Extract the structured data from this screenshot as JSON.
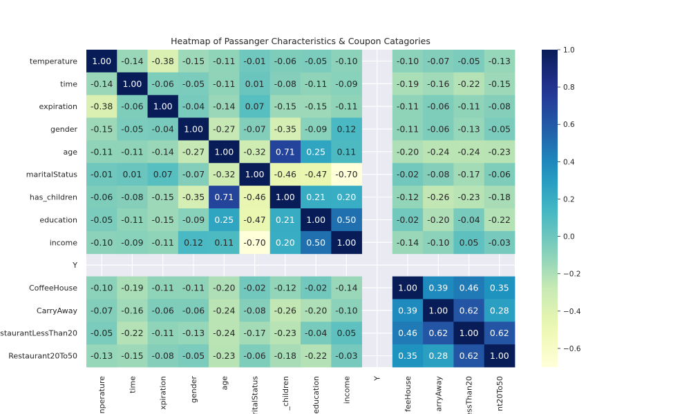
{
  "chart_data": {
    "type": "heatmap",
    "title": "Heatmap of Passanger Characteristics & Coupon Catagories",
    "row_labels": [
      "temperature",
      "time",
      "expiration",
      "gender",
      "age",
      "maritalStatus",
      "has_children",
      "education",
      "income",
      "Y",
      "CoffeeHouse",
      "CarryAway",
      "staurantLessThan20",
      "Restaurant20To50"
    ],
    "col_labels": [
      "nperature",
      "time",
      "xpiration",
      "gender",
      "age",
      "iritalStatus",
      "_children",
      "education",
      "income",
      "Y",
      "feeHouse",
      "arryAway",
      "essThan20",
      "nt20To50"
    ],
    "values": [
      [
        1.0,
        -0.14,
        -0.38,
        -0.15,
        -0.11,
        -0.01,
        -0.06,
        -0.05,
        -0.1,
        null,
        -0.1,
        -0.07,
        -0.05,
        -0.13
      ],
      [
        -0.14,
        1.0,
        -0.06,
        -0.05,
        -0.11,
        0.01,
        -0.08,
        -0.11,
        -0.09,
        null,
        -0.19,
        -0.16,
        -0.22,
        -0.15
      ],
      [
        -0.38,
        -0.06,
        1.0,
        -0.04,
        -0.14,
        0.07,
        -0.15,
        -0.15,
        -0.11,
        null,
        -0.11,
        -0.06,
        -0.11,
        -0.08
      ],
      [
        -0.15,
        -0.05,
        -0.04,
        1.0,
        -0.27,
        -0.07,
        -0.35,
        -0.09,
        0.12,
        null,
        -0.11,
        -0.06,
        -0.13,
        -0.05
      ],
      [
        -0.11,
        -0.11,
        -0.14,
        -0.27,
        1.0,
        -0.32,
        0.71,
        0.25,
        0.11,
        null,
        -0.2,
        -0.24,
        -0.24,
        -0.23
      ],
      [
        -0.01,
        0.01,
        0.07,
        -0.07,
        -0.32,
        1.0,
        -0.46,
        -0.47,
        -0.7,
        null,
        -0.02,
        -0.08,
        -0.17,
        -0.06
      ],
      [
        -0.06,
        -0.08,
        -0.15,
        -0.35,
        0.71,
        -0.46,
        1.0,
        0.21,
        0.2,
        null,
        -0.12,
        -0.26,
        -0.23,
        -0.18
      ],
      [
        -0.05,
        -0.11,
        -0.15,
        -0.09,
        0.25,
        -0.47,
        0.21,
        1.0,
        0.5,
        null,
        -0.02,
        -0.2,
        -0.04,
        -0.22
      ],
      [
        -0.1,
        -0.09,
        -0.11,
        0.12,
        0.11,
        -0.7,
        0.2,
        0.5,
        1.0,
        null,
        -0.14,
        -0.1,
        0.05,
        -0.03
      ],
      [
        null,
        null,
        null,
        null,
        null,
        null,
        null,
        null,
        null,
        null,
        null,
        null,
        null,
        null
      ],
      [
        -0.1,
        -0.19,
        -0.11,
        -0.11,
        -0.2,
        -0.02,
        -0.12,
        -0.02,
        -0.14,
        null,
        1.0,
        0.39,
        0.46,
        0.35
      ],
      [
        -0.07,
        -0.16,
        -0.06,
        -0.06,
        -0.24,
        -0.08,
        -0.26,
        -0.2,
        -0.1,
        null,
        0.39,
        1.0,
        0.62,
        0.28
      ],
      [
        -0.05,
        -0.22,
        -0.11,
        -0.13,
        -0.24,
        -0.17,
        -0.23,
        -0.04,
        0.05,
        null,
        0.46,
        0.62,
        1.0,
        0.62
      ],
      [
        -0.13,
        -0.15,
        -0.08,
        -0.05,
        -0.23,
        -0.06,
        -0.18,
        -0.22,
        -0.03,
        null,
        0.35,
        0.28,
        0.62,
        1.0
      ]
    ],
    "colormap": "YlGnBu",
    "vmin": -0.7,
    "vmax": 1.0,
    "colorbar_ticks": [
      "1.0",
      "0.8",
      "0.6",
      "0.4",
      "0.2",
      "0.0",
      "−0.2",
      "−0.4",
      "−0.6"
    ],
    "colorbar_tick_values": [
      1.0,
      0.8,
      0.6,
      0.4,
      0.2,
      0.0,
      -0.2,
      -0.4,
      -0.6
    ],
    "background_color": "#eaeaf2",
    "grid": true,
    "annotate": true
  }
}
